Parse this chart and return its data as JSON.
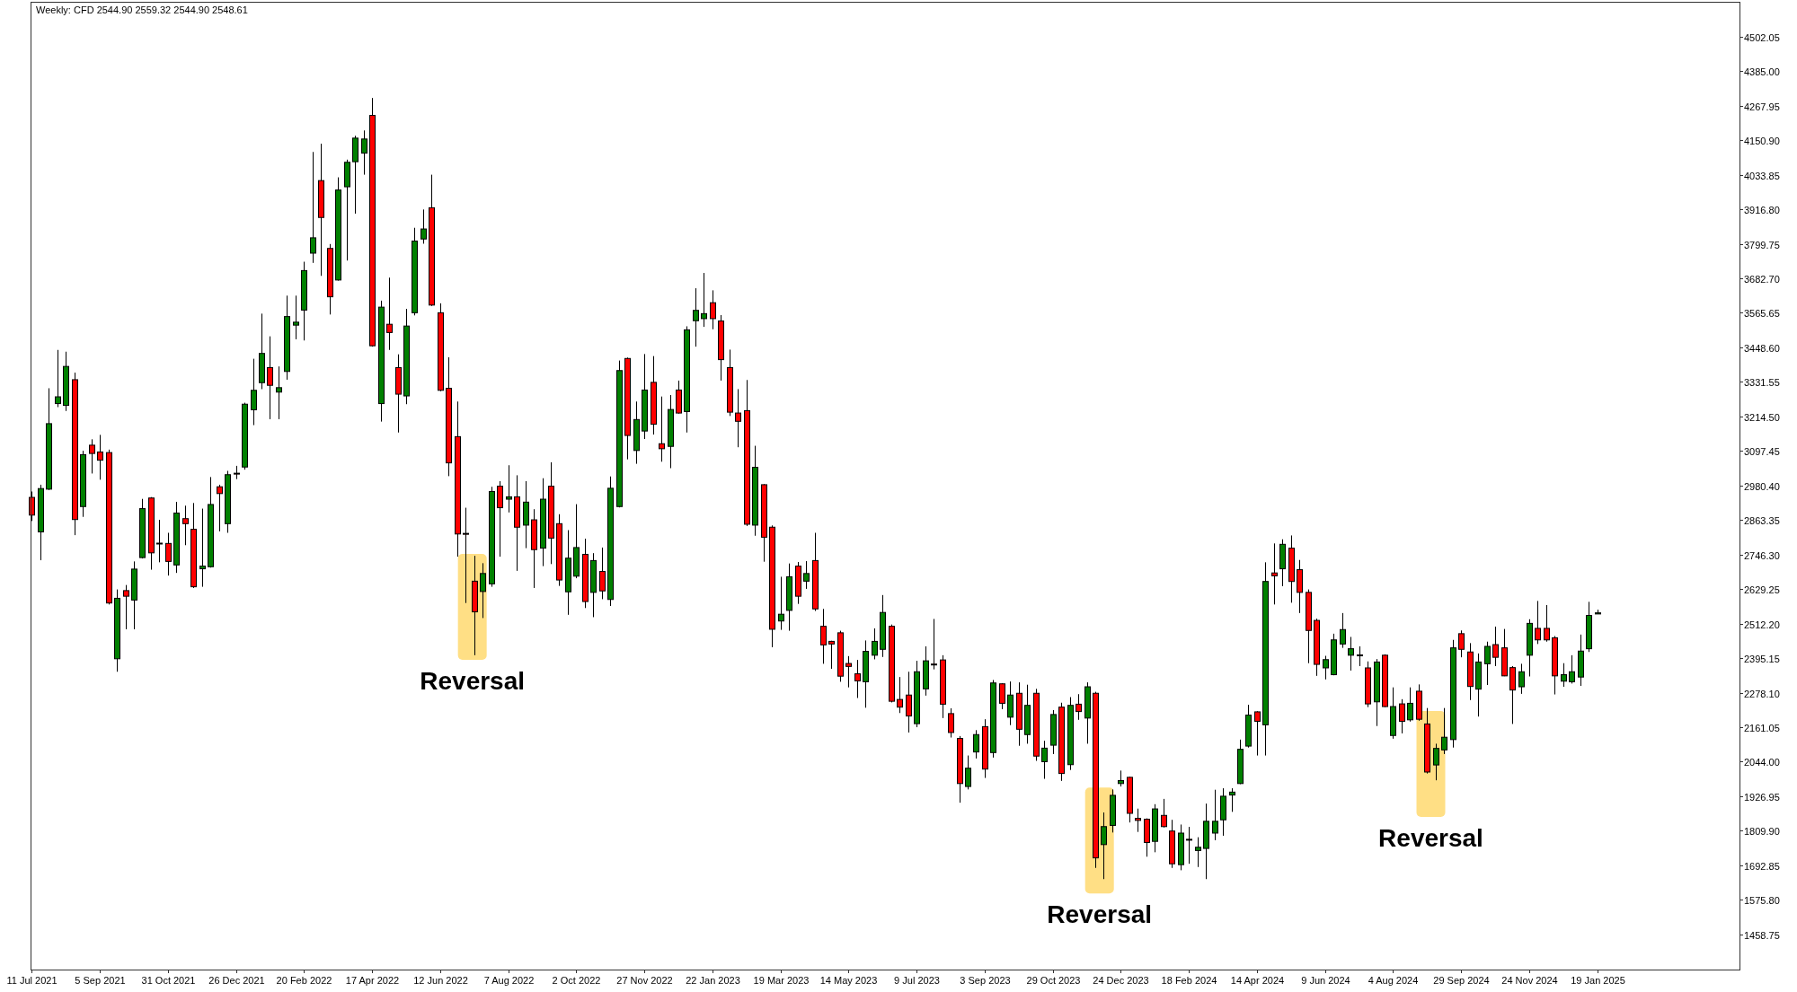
{
  "chart_data": {
    "type": "candlestick",
    "title": "Weekly: CFD 2544.90 2559.32 2544.90 2548.61",
    "x": [
      "2021-07-11",
      "2021-07-18",
      "2021-07-25",
      "2021-08-01",
      "2021-08-08",
      "2021-08-15",
      "2021-08-22",
      "2021-08-29",
      "2021-09-05",
      "2021-09-12",
      "2021-09-19",
      "2021-09-26",
      "2021-10-03",
      "2021-10-10",
      "2021-10-17",
      "2021-10-24",
      "2021-10-31",
      "2021-11-07",
      "2021-11-14",
      "2021-11-21",
      "2021-11-28",
      "2021-12-05",
      "2021-12-12",
      "2021-12-19",
      "2021-12-26",
      "2022-01-02",
      "2022-01-09",
      "2022-01-16",
      "2022-01-23",
      "2022-01-30",
      "2022-02-06",
      "2022-02-13",
      "2022-02-20",
      "2022-02-27",
      "2022-03-06",
      "2022-03-13",
      "2022-03-20",
      "2022-03-27",
      "2022-04-03",
      "2022-04-10",
      "2022-04-17",
      "2022-04-24",
      "2022-05-01",
      "2022-05-08",
      "2022-05-15",
      "2022-05-22",
      "2022-05-29",
      "2022-06-05",
      "2022-06-12",
      "2022-06-19",
      "2022-06-26",
      "2022-07-03",
      "2022-07-10",
      "2022-07-17",
      "2022-07-24",
      "2022-07-31",
      "2022-08-07",
      "2022-08-14",
      "2022-08-21",
      "2022-08-28",
      "2022-09-04",
      "2022-09-11",
      "2022-09-18",
      "2022-09-25",
      "2022-10-02",
      "2022-10-09",
      "2022-10-16",
      "2022-10-23",
      "2022-10-30",
      "2022-11-06",
      "2022-11-13",
      "2022-11-20",
      "2022-11-27",
      "2022-12-04",
      "2022-12-11",
      "2022-12-18",
      "2022-12-25",
      "2023-01-01",
      "2023-01-08",
      "2023-01-15",
      "2023-01-22",
      "2023-01-29",
      "2023-02-05",
      "2023-02-12",
      "2023-02-19",
      "2023-02-26",
      "2023-03-05",
      "2023-03-12",
      "2023-03-19",
      "2023-03-26",
      "2023-04-02",
      "2023-04-09",
      "2023-04-16",
      "2023-04-23",
      "2023-04-30",
      "2023-05-07",
      "2023-05-14",
      "2023-05-21",
      "2023-05-28",
      "2023-06-04",
      "2023-06-11",
      "2023-06-18",
      "2023-06-25",
      "2023-07-02",
      "2023-07-09",
      "2023-07-16",
      "2023-07-23",
      "2023-07-30",
      "2023-08-06",
      "2023-08-13",
      "2023-08-20",
      "2023-08-27",
      "2023-09-03",
      "2023-09-10",
      "2023-09-17",
      "2023-09-24",
      "2023-10-01",
      "2023-10-08",
      "2023-10-15",
      "2023-10-22",
      "2023-10-29",
      "2023-11-05",
      "2023-11-12",
      "2023-11-19",
      "2023-11-26",
      "2023-12-03",
      "2023-12-10",
      "2023-12-17",
      "2023-12-24",
      "2023-12-31",
      "2024-01-07",
      "2024-01-14",
      "2024-01-21",
      "2024-01-28",
      "2024-02-04",
      "2024-02-11",
      "2024-02-18",
      "2024-02-25",
      "2024-03-03",
      "2024-03-10",
      "2024-03-17",
      "2024-03-24",
      "2024-03-31",
      "2024-04-07",
      "2024-04-14",
      "2024-04-21",
      "2024-04-28",
      "2024-05-05",
      "2024-05-12",
      "2024-05-19",
      "2024-05-26",
      "2024-06-02",
      "2024-06-09",
      "2024-06-16",
      "2024-06-23",
      "2024-06-30",
      "2024-07-07",
      "2024-07-14",
      "2024-07-21",
      "2024-07-28",
      "2024-08-04",
      "2024-08-11",
      "2024-08-18",
      "2024-08-25",
      "2024-09-01",
      "2024-09-08",
      "2024-09-15",
      "2024-09-22",
      "2024-09-29",
      "2024-10-06",
      "2024-10-13",
      "2024-10-20",
      "2024-10-27",
      "2024-11-03",
      "2024-11-10",
      "2024-11-17",
      "2024-11-24",
      "2024-12-01",
      "2024-12-08",
      "2024-12-15",
      "2024-12-22",
      "2024-12-29",
      "2025-01-05",
      "2025-01-12",
      "2025-01-19"
    ],
    "ohlc": [
      [
        2940,
        2960,
        2860,
        2880
      ],
      [
        2823,
        2983,
        2727,
        2970
      ],
      [
        2968,
        3310,
        2965,
        3190
      ],
      [
        3258,
        3440,
        3246,
        3281
      ],
      [
        3252,
        3434,
        3233,
        3384
      ],
      [
        3339,
        3363,
        2812,
        2865
      ],
      [
        2909,
        3098,
        2874,
        3085
      ],
      [
        3117,
        3137,
        3021,
        3089
      ],
      [
        3094,
        3152,
        3000,
        3066
      ],
      [
        3092,
        3102,
        2577,
        2582
      ],
      [
        2393,
        2628,
        2349,
        2598
      ],
      [
        2624,
        2643,
        2493,
        2605
      ],
      [
        2592,
        2723,
        2493,
        2697
      ],
      [
        2736,
        2935,
        2733,
        2902
      ],
      [
        2938,
        2941,
        2695,
        2752
      ],
      [
        2785,
        2864,
        2720,
        2783
      ],
      [
        2784,
        2820,
        2675,
        2723
      ],
      [
        2711,
        2925,
        2684,
        2887
      ],
      [
        2868,
        2912,
        2778,
        2851
      ],
      [
        2832,
        2921,
        2633,
        2637
      ],
      [
        2698,
        2902,
        2637,
        2707
      ],
      [
        2705,
        3009,
        2702,
        2916
      ],
      [
        2976,
        2983,
        2825,
        2953
      ],
      [
        2851,
        3030,
        2820,
        3017
      ],
      [
        3022,
        3047,
        3002,
        3020
      ],
      [
        3043,
        3261,
        3034,
        3256
      ],
      [
        3237,
        3410,
        3185,
        3303
      ],
      [
        3329,
        3563,
        3307,
        3428
      ],
      [
        3380,
        3486,
        3205,
        3320
      ],
      [
        3297,
        3384,
        3205,
        3312
      ],
      [
        3367,
        3624,
        3339,
        3553
      ],
      [
        3524,
        3624,
        3476,
        3534
      ],
      [
        3575,
        3739,
        3472,
        3709
      ],
      [
        3768,
        4111,
        3735,
        3820
      ],
      [
        4014,
        4139,
        3691,
        3889
      ],
      [
        3784,
        3799,
        3560,
        3620
      ],
      [
        3677,
        4025,
        3675,
        3982
      ],
      [
        3993,
        4085,
        3743,
        4076
      ],
      [
        4078,
        4166,
        3902,
        4158
      ],
      [
        4107,
        4184,
        4034,
        4155
      ],
      [
        4235,
        4294,
        3451,
        3454
      ],
      [
        3258,
        3607,
        3197,
        3585
      ],
      [
        3527,
        3685,
        3440,
        3499
      ],
      [
        3380,
        3425,
        3160,
        3290
      ],
      [
        3284,
        3579,
        3256,
        3521
      ],
      [
        3566,
        3854,
        3557,
        3809
      ],
      [
        3816,
        3916,
        3800,
        3850
      ],
      [
        3922,
        4034,
        3589,
        3592
      ],
      [
        3566,
        3598,
        3300,
        3303
      ],
      [
        3310,
        3415,
        3012,
        3057
      ],
      [
        3146,
        3265,
        2739,
        2816
      ],
      [
        2818,
        2905,
        2582,
        2816
      ],
      [
        2656,
        2742,
        2405,
        2552
      ],
      [
        2621,
        2717,
        2531,
        2682
      ],
      [
        2647,
        2976,
        2637,
        2960
      ],
      [
        2978,
        2995,
        2739,
        2905
      ],
      [
        2934,
        3049,
        2889,
        2942
      ],
      [
        2942,
        3015,
        2691,
        2839
      ],
      [
        2846,
        2995,
        2768,
        2924
      ],
      [
        2864,
        2900,
        2633,
        2763
      ],
      [
        2768,
        3005,
        2707,
        2934
      ],
      [
        2978,
        3059,
        2714,
        2802
      ],
      [
        2851,
        2883,
        2640,
        2660
      ],
      [
        2620,
        2829,
        2542,
        2734
      ],
      [
        2673,
        2917,
        2666,
        2770
      ],
      [
        2747,
        2800,
        2565,
        2587
      ],
      [
        2618,
        2751,
        2534,
        2726
      ],
      [
        2689,
        2770,
        2595,
        2623
      ],
      [
        2594,
        3011,
        2572,
        2971
      ],
      [
        2909,
        3404,
        2906,
        3370
      ],
      [
        3411,
        3414,
        3069,
        3150
      ],
      [
        3099,
        3265,
        3054,
        3204
      ],
      [
        3165,
        3426,
        3138,
        3304
      ],
      [
        3330,
        3419,
        3153,
        3188
      ],
      [
        3122,
        3282,
        3061,
        3105
      ],
      [
        3113,
        3287,
        3039,
        3238
      ],
      [
        3304,
        3336,
        3224,
        3226
      ],
      [
        3231,
        3520,
        3160,
        3508
      ],
      [
        3539,
        3649,
        3451,
        3574
      ],
      [
        3546,
        3701,
        3518,
        3563
      ],
      [
        3600,
        3642,
        3510,
        3546
      ],
      [
        3538,
        3558,
        3336,
        3407
      ],
      [
        3380,
        3441,
        3216,
        3229
      ],
      [
        3226,
        3307,
        3110,
        3198
      ],
      [
        3234,
        3338,
        2843,
        2849
      ],
      [
        2846,
        3115,
        2810,
        3042
      ],
      [
        2983,
        2985,
        2722,
        2805
      ],
      [
        2839,
        2845,
        2432,
        2493
      ],
      [
        2521,
        2671,
        2491,
        2544
      ],
      [
        2557,
        2716,
        2488,
        2671
      ],
      [
        2707,
        2721,
        2579,
        2605
      ],
      [
        2656,
        2724,
        2630,
        2682
      ],
      [
        2726,
        2820,
        2555,
        2562
      ],
      [
        2503,
        2562,
        2376,
        2440
      ],
      [
        2452,
        2454,
        2359,
        2443
      ],
      [
        2481,
        2488,
        2315,
        2334
      ],
      [
        2377,
        2402,
        2296,
        2367
      ],
      [
        2342,
        2389,
        2260,
        2318
      ],
      [
        2315,
        2455,
        2227,
        2418
      ],
      [
        2405,
        2496,
        2391,
        2452
      ],
      [
        2425,
        2609,
        2399,
        2550
      ],
      [
        2503,
        2509,
        2245,
        2249
      ],
      [
        2255,
        2331,
        2209,
        2229
      ],
      [
        2270,
        2349,
        2143,
        2199
      ],
      [
        2173,
        2386,
        2161,
        2349
      ],
      [
        2291,
        2435,
        2268,
        2386
      ],
      [
        2375,
        2528,
        2357,
        2373
      ],
      [
        2389,
        2405,
        2192,
        2239
      ],
      [
        2207,
        2225,
        2126,
        2143
      ],
      [
        2123,
        2131,
        1905,
        1970
      ],
      [
        1960,
        2065,
        1950,
        2022
      ],
      [
        2077,
        2151,
        2055,
        2136
      ],
      [
        2163,
        2188,
        1989,
        2019
      ],
      [
        2075,
        2321,
        2058,
        2311
      ],
      [
        2308,
        2310,
        2222,
        2242
      ],
      [
        2195,
        2316,
        2168,
        2270
      ],
      [
        2276,
        2313,
        2098,
        2154
      ],
      [
        2136,
        2305,
        2105,
        2235
      ],
      [
        2276,
        2291,
        2047,
        2063
      ],
      [
        2044,
        2115,
        1986,
        2090
      ],
      [
        2100,
        2219,
        2070,
        2204
      ],
      [
        2229,
        2244,
        1979,
        2004
      ],
      [
        2034,
        2263,
        2016,
        2235
      ],
      [
        2239,
        2273,
        2186,
        2214
      ],
      [
        2192,
        2313,
        2105,
        2298
      ],
      [
        2276,
        2281,
        1684,
        1718
      ],
      [
        1763,
        1872,
        1646,
        1824
      ],
      [
        1828,
        1950,
        1804,
        1930
      ],
      [
        1970,
        2014,
        1960,
        1980
      ],
      [
        1991,
        1993,
        1838,
        1869
      ],
      [
        1852,
        1885,
        1806,
        1845
      ],
      [
        1849,
        1852,
        1722,
        1770
      ],
      [
        1774,
        1900,
        1737,
        1884
      ],
      [
        1862,
        1918,
        1821,
        1824
      ],
      [
        1809,
        1847,
        1684,
        1698
      ],
      [
        1695,
        1831,
        1676,
        1802
      ],
      [
        1781,
        1823,
        1698,
        1779
      ],
      [
        1743,
        1788,
        1687,
        1754
      ],
      [
        1750,
        1902,
        1646,
        1842
      ],
      [
        1802,
        1949,
        1778,
        1842
      ],
      [
        1847,
        1954,
        1793,
        1927
      ],
      [
        1931,
        1954,
        1874,
        1941
      ],
      [
        1970,
        2119,
        1968,
        2086
      ],
      [
        2097,
        2237,
        2092,
        2202
      ],
      [
        2213,
        2215,
        2065,
        2181
      ],
      [
        2169,
        2720,
        2065,
        2655
      ],
      [
        2684,
        2784,
        2577,
        2674
      ],
      [
        2698,
        2798,
        2639,
        2781
      ],
      [
        2768,
        2811,
        2583,
        2655
      ],
      [
        2695,
        2728,
        2548,
        2618
      ],
      [
        2618,
        2628,
        2378,
        2489
      ],
      [
        2523,
        2529,
        2335,
        2374
      ],
      [
        2362,
        2403,
        2323,
        2390
      ],
      [
        2339,
        2478,
        2337,
        2457
      ],
      [
        2443,
        2548,
        2430,
        2492
      ],
      [
        2405,
        2467,
        2353,
        2427
      ],
      [
        2406,
        2435,
        2368,
        2404
      ],
      [
        2362,
        2384,
        2229,
        2240
      ],
      [
        2247,
        2392,
        2165,
        2382
      ],
      [
        2405,
        2408,
        2229,
        2231
      ],
      [
        2133,
        2296,
        2122,
        2231
      ],
      [
        2240,
        2256,
        2140,
        2181
      ],
      [
        2186,
        2296,
        2180,
        2242
      ],
      [
        2283,
        2306,
        2183,
        2188
      ],
      [
        2172,
        2226,
        2004,
        2009
      ],
      [
        2033,
        2105,
        1981,
        2089
      ],
      [
        2084,
        2226,
        2070,
        2127
      ],
      [
        2119,
        2457,
        2092,
        2430
      ],
      [
        2478,
        2489,
        2398,
        2425
      ],
      [
        2416,
        2446,
        2253,
        2299
      ],
      [
        2290,
        2411,
        2197,
        2382
      ],
      [
        2376,
        2451,
        2304,
        2435
      ],
      [
        2441,
        2502,
        2368,
        2398
      ],
      [
        2430,
        2494,
        2334,
        2335
      ],
      [
        2363,
        2368,
        2172,
        2287
      ],
      [
        2298,
        2376,
        2274,
        2349
      ],
      [
        2405,
        2527,
        2333,
        2513
      ],
      [
        2496,
        2589,
        2443,
        2457
      ],
      [
        2496,
        2575,
        2451,
        2457
      ],
      [
        2464,
        2470,
        2272,
        2335
      ],
      [
        2317,
        2378,
        2298,
        2339
      ],
      [
        2315,
        2405,
        2309,
        2349
      ],
      [
        2331,
        2475,
        2301,
        2419
      ],
      [
        2427,
        2586,
        2416,
        2540
      ],
      [
        2544.9,
        2559.32,
        2544.9,
        2548.61
      ]
    ],
    "colors": [
      "#ff0000",
      "#008000",
      "#008000",
      "#008000",
      "#008000",
      "#ff0000",
      "#008000",
      "#ff0000",
      "#ff0000",
      "#ff0000",
      "#008000",
      "#ff0000",
      "#008000",
      "#008000",
      "#ff0000",
      "#ff0000",
      "#ff0000",
      "#008000",
      "#ff0000",
      "#ff0000",
      "#008000",
      "#008000",
      "#ff0000",
      "#008000",
      "#ff0000",
      "#008000",
      "#008000",
      "#008000",
      "#ff0000",
      "#008000",
      "#008000",
      "#008000",
      "#008000",
      "#008000",
      "#ff0000",
      "#ff0000",
      "#008000",
      "#008000",
      "#008000",
      "#008000",
      "#ff0000",
      "#008000",
      "#ff0000",
      "#ff0000",
      "#008000",
      "#008000",
      "#008000",
      "#ff0000",
      "#ff0000",
      "#ff0000",
      "#ff0000",
      "#ff0000",
      "#ff0000",
      "#008000",
      "#008000",
      "#ff0000",
      "#008000",
      "#ff0000",
      "#008000",
      "#ff0000",
      "#008000",
      "#ff0000",
      "#ff0000",
      "#008000",
      "#008000",
      "#ff0000",
      "#008000",
      "#ff0000",
      "#008000",
      "#008000",
      "#ff0000",
      "#008000",
      "#008000",
      "#ff0000",
      "#ff0000",
      "#008000",
      "#ff0000",
      "#008000",
      "#008000",
      "#008000",
      "#ff0000",
      "#ff0000",
      "#ff0000",
      "#ff0000",
      "#ff0000",
      "#008000",
      "#ff0000",
      "#ff0000",
      "#008000",
      "#008000",
      "#ff0000",
      "#008000",
      "#ff0000",
      "#ff0000",
      "#ff0000",
      "#ff0000",
      "#ff0000",
      "#ff0000",
      "#008000",
      "#008000",
      "#008000",
      "#ff0000",
      "#ff0000",
      "#ff0000",
      "#008000",
      "#008000",
      "#ff0000",
      "#ff0000",
      "#ff0000",
      "#ff0000",
      "#008000",
      "#008000",
      "#ff0000",
      "#008000",
      "#ff0000",
      "#008000",
      "#ff0000",
      "#008000",
      "#ff0000",
      "#008000",
      "#008000",
      "#ff0000",
      "#008000",
      "#ff0000",
      "#008000",
      "#ff0000",
      "#008000",
      "#008000",
      "#008000",
      "#ff0000",
      "#ff0000",
      "#ff0000",
      "#008000",
      "#ff0000",
      "#ff0000",
      "#008000",
      "#ff0000",
      "#008000",
      "#008000",
      "#008000",
      "#008000",
      "#008000",
      "#008000",
      "#008000",
      "#ff0000",
      "#008000",
      "#ff0000",
      "#008000",
      "#ff0000",
      "#ff0000",
      "#ff0000",
      "#ff0000",
      "#008000",
      "#008000",
      "#008000",
      "#008000",
      "#ff0000",
      "#ff0000",
      "#008000",
      "#ff0000",
      "#008000",
      "#ff0000",
      "#008000",
      "#ff0000",
      "#ff0000",
      "#008000",
      "#008000",
      "#008000",
      "#ff0000",
      "#ff0000",
      "#008000",
      "#008000",
      "#ff0000",
      "#ff0000",
      "#ff0000",
      "#008000",
      "#008000",
      "#ff0000",
      "#ff0000",
      "#ff0000",
      "#008000",
      "#008000",
      "#008000",
      "#008000",
      "#008000"
    ],
    "xlim": [
      "2021-07-10",
      "2025-05-16"
    ],
    "xticks": [
      {
        "value": "2021-07-11",
        "label": "11 Jul 2021"
      },
      {
        "value": "2021-09-05",
        "label": "5 Sep 2021"
      },
      {
        "value": "2021-10-31",
        "label": "31 Oct 2021"
      },
      {
        "value": "2021-12-26",
        "label": "26 Dec 2021"
      },
      {
        "value": "2022-02-20",
        "label": "20 Feb 2022"
      },
      {
        "value": "2022-04-17",
        "label": "17 Apr 2022"
      },
      {
        "value": "2022-06-12",
        "label": "12 Jun 2022"
      },
      {
        "value": "2022-08-07",
        "label": "7 Aug 2022"
      },
      {
        "value": "2022-10-02",
        "label": "2 Oct 2022"
      },
      {
        "value": "2022-11-27",
        "label": "27 Nov 2022"
      },
      {
        "value": "2023-01-22",
        "label": "22 Jan 2023"
      },
      {
        "value": "2023-03-19",
        "label": "19 Mar 2023"
      },
      {
        "value": "2023-05-14",
        "label": "14 May 2023"
      },
      {
        "value": "2023-07-09",
        "label": "9 Jul 2023"
      },
      {
        "value": "2023-09-03",
        "label": "3 Sep 2023"
      },
      {
        "value": "2023-10-29",
        "label": "29 Oct 2023"
      },
      {
        "value": "2023-12-24",
        "label": "24 Dec 2023"
      },
      {
        "value": "2024-02-18",
        "label": "18 Feb 2024"
      },
      {
        "value": "2024-04-14",
        "label": "14 Apr 2024"
      },
      {
        "value": "2024-06-09",
        "label": "9 Jun 2024"
      },
      {
        "value": "2024-08-04",
        "label": "4 Aug 2024"
      },
      {
        "value": "2024-09-29",
        "label": "29 Sep 2024"
      },
      {
        "value": "2024-11-24",
        "label": "24 Nov 2024"
      },
      {
        "value": "2025-01-19",
        "label": "19 Jan 2025"
      }
    ],
    "ylim": [
      1339.4,
      4620.1
    ],
    "yticks": [
      {
        "value": 1458.75,
        "label": "1458.75"
      },
      {
        "value": 1575.8,
        "label": "1575.80"
      },
      {
        "value": 1692.85,
        "label": "1692.85"
      },
      {
        "value": 1809.9,
        "label": "1809.90"
      },
      {
        "value": 1926.95,
        "label": "1926.95"
      },
      {
        "value": 2044,
        "label": "2044.00"
      },
      {
        "value": 2161.05,
        "label": "2161.05"
      },
      {
        "value": 2278.1,
        "label": "2278.10"
      },
      {
        "value": 2395.15,
        "label": "2395.15"
      },
      {
        "value": 2512.2,
        "label": "2512.20"
      },
      {
        "value": 2629.25,
        "label": "2629.25"
      },
      {
        "value": 2746.3,
        "label": "2746.30"
      },
      {
        "value": 2863.35,
        "label": "2863.35"
      },
      {
        "value": 2980.4,
        "label": "2980.40"
      },
      {
        "value": 3097.45,
        "label": "3097.45"
      },
      {
        "value": 3214.5,
        "label": "3214.50"
      },
      {
        "value": 3331.55,
        "label": "3331.55"
      },
      {
        "value": 3448.6,
        "label": "3448.60"
      },
      {
        "value": 3565.65,
        "label": "3565.65"
      },
      {
        "value": 3682.7,
        "label": "3682.70"
      },
      {
        "value": 3799.75,
        "label": "3799.75"
      },
      {
        "value": 3916.8,
        "label": "3916.80"
      },
      {
        "value": 4033.85,
        "label": "4033.85"
      },
      {
        "value": 4150.9,
        "label": "4150.90"
      },
      {
        "value": 4267.95,
        "label": "4267.95"
      },
      {
        "value": 4385,
        "label": "4385.00"
      },
      {
        "value": 4502.05,
        "label": "4502.05"
      }
    ],
    "annotations": [
      "Reversal",
      "Reversal",
      "Reversal"
    ]
  }
}
